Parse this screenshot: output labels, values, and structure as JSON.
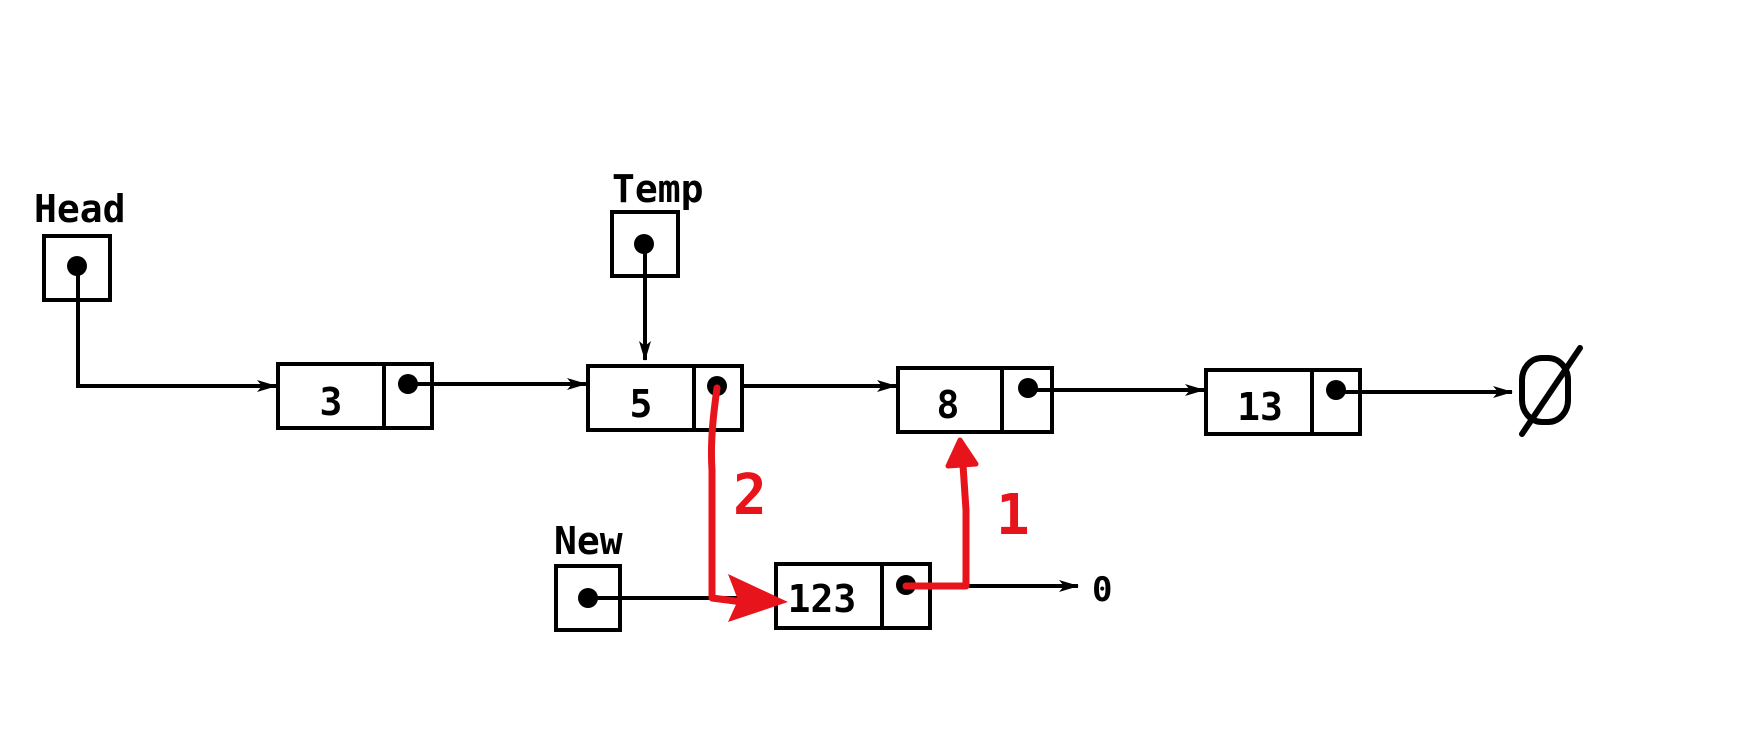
{
  "pointers": {
    "head": {
      "label": "Head"
    },
    "temp": {
      "label": "Temp"
    },
    "new": {
      "label": "New"
    }
  },
  "nodes": [
    {
      "value": "3"
    },
    {
      "value": "5"
    },
    {
      "value": "8"
    },
    {
      "value": "13"
    }
  ],
  "new_node": {
    "value": "123",
    "next_label": "0"
  },
  "steps": {
    "one": "1",
    "two": "2"
  },
  "null_symbol": "Ø",
  "colors": {
    "ink": "#000000",
    "highlight": "#e8141c",
    "background": "#ffffff"
  }
}
